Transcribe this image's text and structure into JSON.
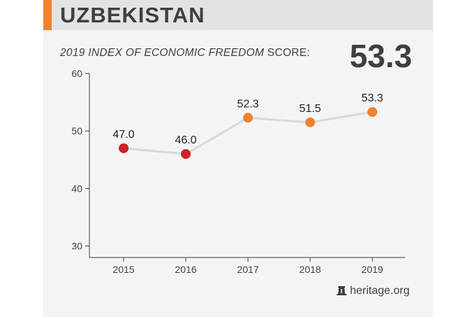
{
  "header": {
    "country": "UZBEKISTAN",
    "accent_color": "#f0822d"
  },
  "subtitle": {
    "italic_part": "2019 INDEX OF ECONOMIC FREEDOM",
    "plain_part": " SCORE:"
  },
  "score_value": "53.3",
  "source": {
    "icon": "liberty-bell-icon",
    "text": "heritage.org"
  },
  "chart_data": {
    "type": "line",
    "x": [
      "2015",
      "2016",
      "2017",
      "2018",
      "2019"
    ],
    "values": [
      47.0,
      46.0,
      52.3,
      51.5,
      53.3
    ],
    "labels": [
      "47.0",
      "46.0",
      "52.3",
      "51.5",
      "53.3"
    ],
    "point_colors": [
      "#cc2229",
      "#cc2229",
      "#f0822d",
      "#f0822d",
      "#f0822d"
    ],
    "line_color": "#d9d9da",
    "ylim": [
      28,
      60
    ],
    "yticks": [
      30,
      40,
      50,
      60
    ],
    "ytick_labels": [
      "30",
      "40",
      "50",
      "60"
    ],
    "grid": false,
    "title": "2019 INDEX OF ECONOMIC FREEDOM SCORE",
    "xlabel": "",
    "ylabel": ""
  }
}
